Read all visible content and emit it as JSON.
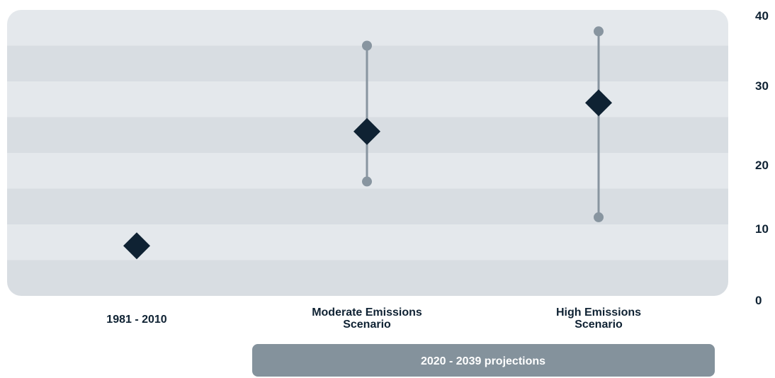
{
  "chart_data": {
    "type": "scatter",
    "categories": [
      "1981 - 2010",
      "Moderate Emissions Scenario",
      "High Emissions Scenario"
    ],
    "category_label_lines": [
      [
        "1981 - 2010"
      ],
      [
        "Moderate Emissions",
        "Scenario"
      ],
      [
        "High Emissions",
        "Scenario"
      ]
    ],
    "values": [
      7,
      23,
      27
    ],
    "ranges": [
      null,
      [
        16,
        35
      ],
      [
        11,
        37
      ]
    ],
    "yticks": [
      0,
      10,
      20,
      30,
      40
    ],
    "ylim": [
      0,
      40
    ],
    "y_axis_side": "right",
    "bracket": {
      "label": "2020 - 2039 projections",
      "spans": [
        "Moderate Emissions Scenario",
        "High Emissions Scenario"
      ]
    },
    "grid": "alternating horizontal bands",
    "title": "",
    "xlabel": "",
    "ylabel": ""
  },
  "colors": {
    "band_light": "#e4e8ec",
    "band_dark": "#d8dde2",
    "marker": "#0f2233",
    "range": "#8895a0",
    "banner": "#84929c",
    "text": "#0f2233"
  }
}
